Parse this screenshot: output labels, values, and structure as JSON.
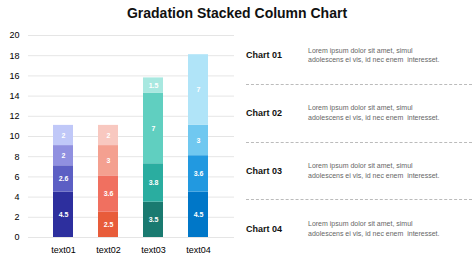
{
  "chart_data": {
    "type": "bar",
    "title": "Gradation Stacked Column Chart",
    "categories": [
      "text01",
      "text02",
      "text03",
      "text04"
    ],
    "series": [
      {
        "values": [
          4.5,
          2.5,
          3.5,
          4.5
        ],
        "colors": [
          "#2d2f9e",
          "#e85c3a",
          "#1a7a70",
          "#0077c8"
        ]
      },
      {
        "values": [
          2.6,
          3.6,
          3.8,
          3.6
        ],
        "colors": [
          "#5c5fc4",
          "#f07060",
          "#2aada0",
          "#2299e0"
        ]
      },
      {
        "values": [
          2,
          3,
          7,
          3
        ],
        "colors": [
          "#9090e0",
          "#f4a090",
          "#60cfc0",
          "#70c8f0"
        ]
      },
      {
        "values": [
          2,
          2,
          1.5,
          7
        ],
        "colors": [
          "#c0c8f8",
          "#f8c8c0",
          "#a8e8e0",
          "#b0e4f8"
        ]
      }
    ],
    "stacked": true,
    "data_labels": true,
    "grid": true,
    "ylim": [
      0,
      20
    ],
    "yticks": [
      0,
      2,
      4,
      6,
      8,
      10,
      12,
      14,
      16,
      18,
      20
    ],
    "annotations": [
      {
        "label": "Chart 01",
        "text": "Lorem ipsum dolor sit amet, simul\nadolescens ei vis, id nec enem  interesset."
      },
      {
        "label": "Chart 02",
        "text": "Lorem ipsum dolor sit amet, simul\nadolescens ei vis, id nec enem  interesset."
      },
      {
        "label": "Chart 03",
        "text": "Lorem ipsum dolor sit amet, simul\nadolescens ei vis, id nec enem  interesset."
      },
      {
        "label": "Chart 04",
        "text": "Lorem ipsum dolor sit amet, simul\nadolescens ei vis, id nec enem  interesset."
      }
    ]
  }
}
